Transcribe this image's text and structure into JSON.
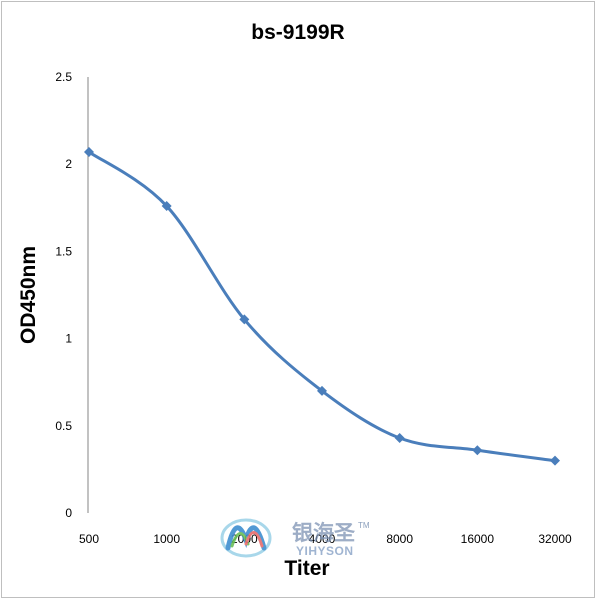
{
  "chart_data": {
    "type": "line",
    "title": "bs-9199R",
    "xlabel": "Titer",
    "ylabel": "OD450nm",
    "categories": [
      "500",
      "1000",
      "2000",
      "4000",
      "8000",
      "16000",
      "32000"
    ],
    "series": [
      {
        "values": [
          2.07,
          1.76,
          1.11,
          0.7,
          0.43,
          0.36,
          0.3
        ]
      }
    ],
    "ylim": [
      0,
      2.5
    ],
    "yticks": [
      "0",
      "0.5",
      "1",
      "1.5",
      "2",
      "2.5"
    ],
    "grid": false,
    "legend": "none",
    "line_color": "#4a7ebb",
    "smooth": true
  },
  "watermark": {
    "cn": "银海圣",
    "en": "YIHYSON",
    "tm": "TM"
  }
}
